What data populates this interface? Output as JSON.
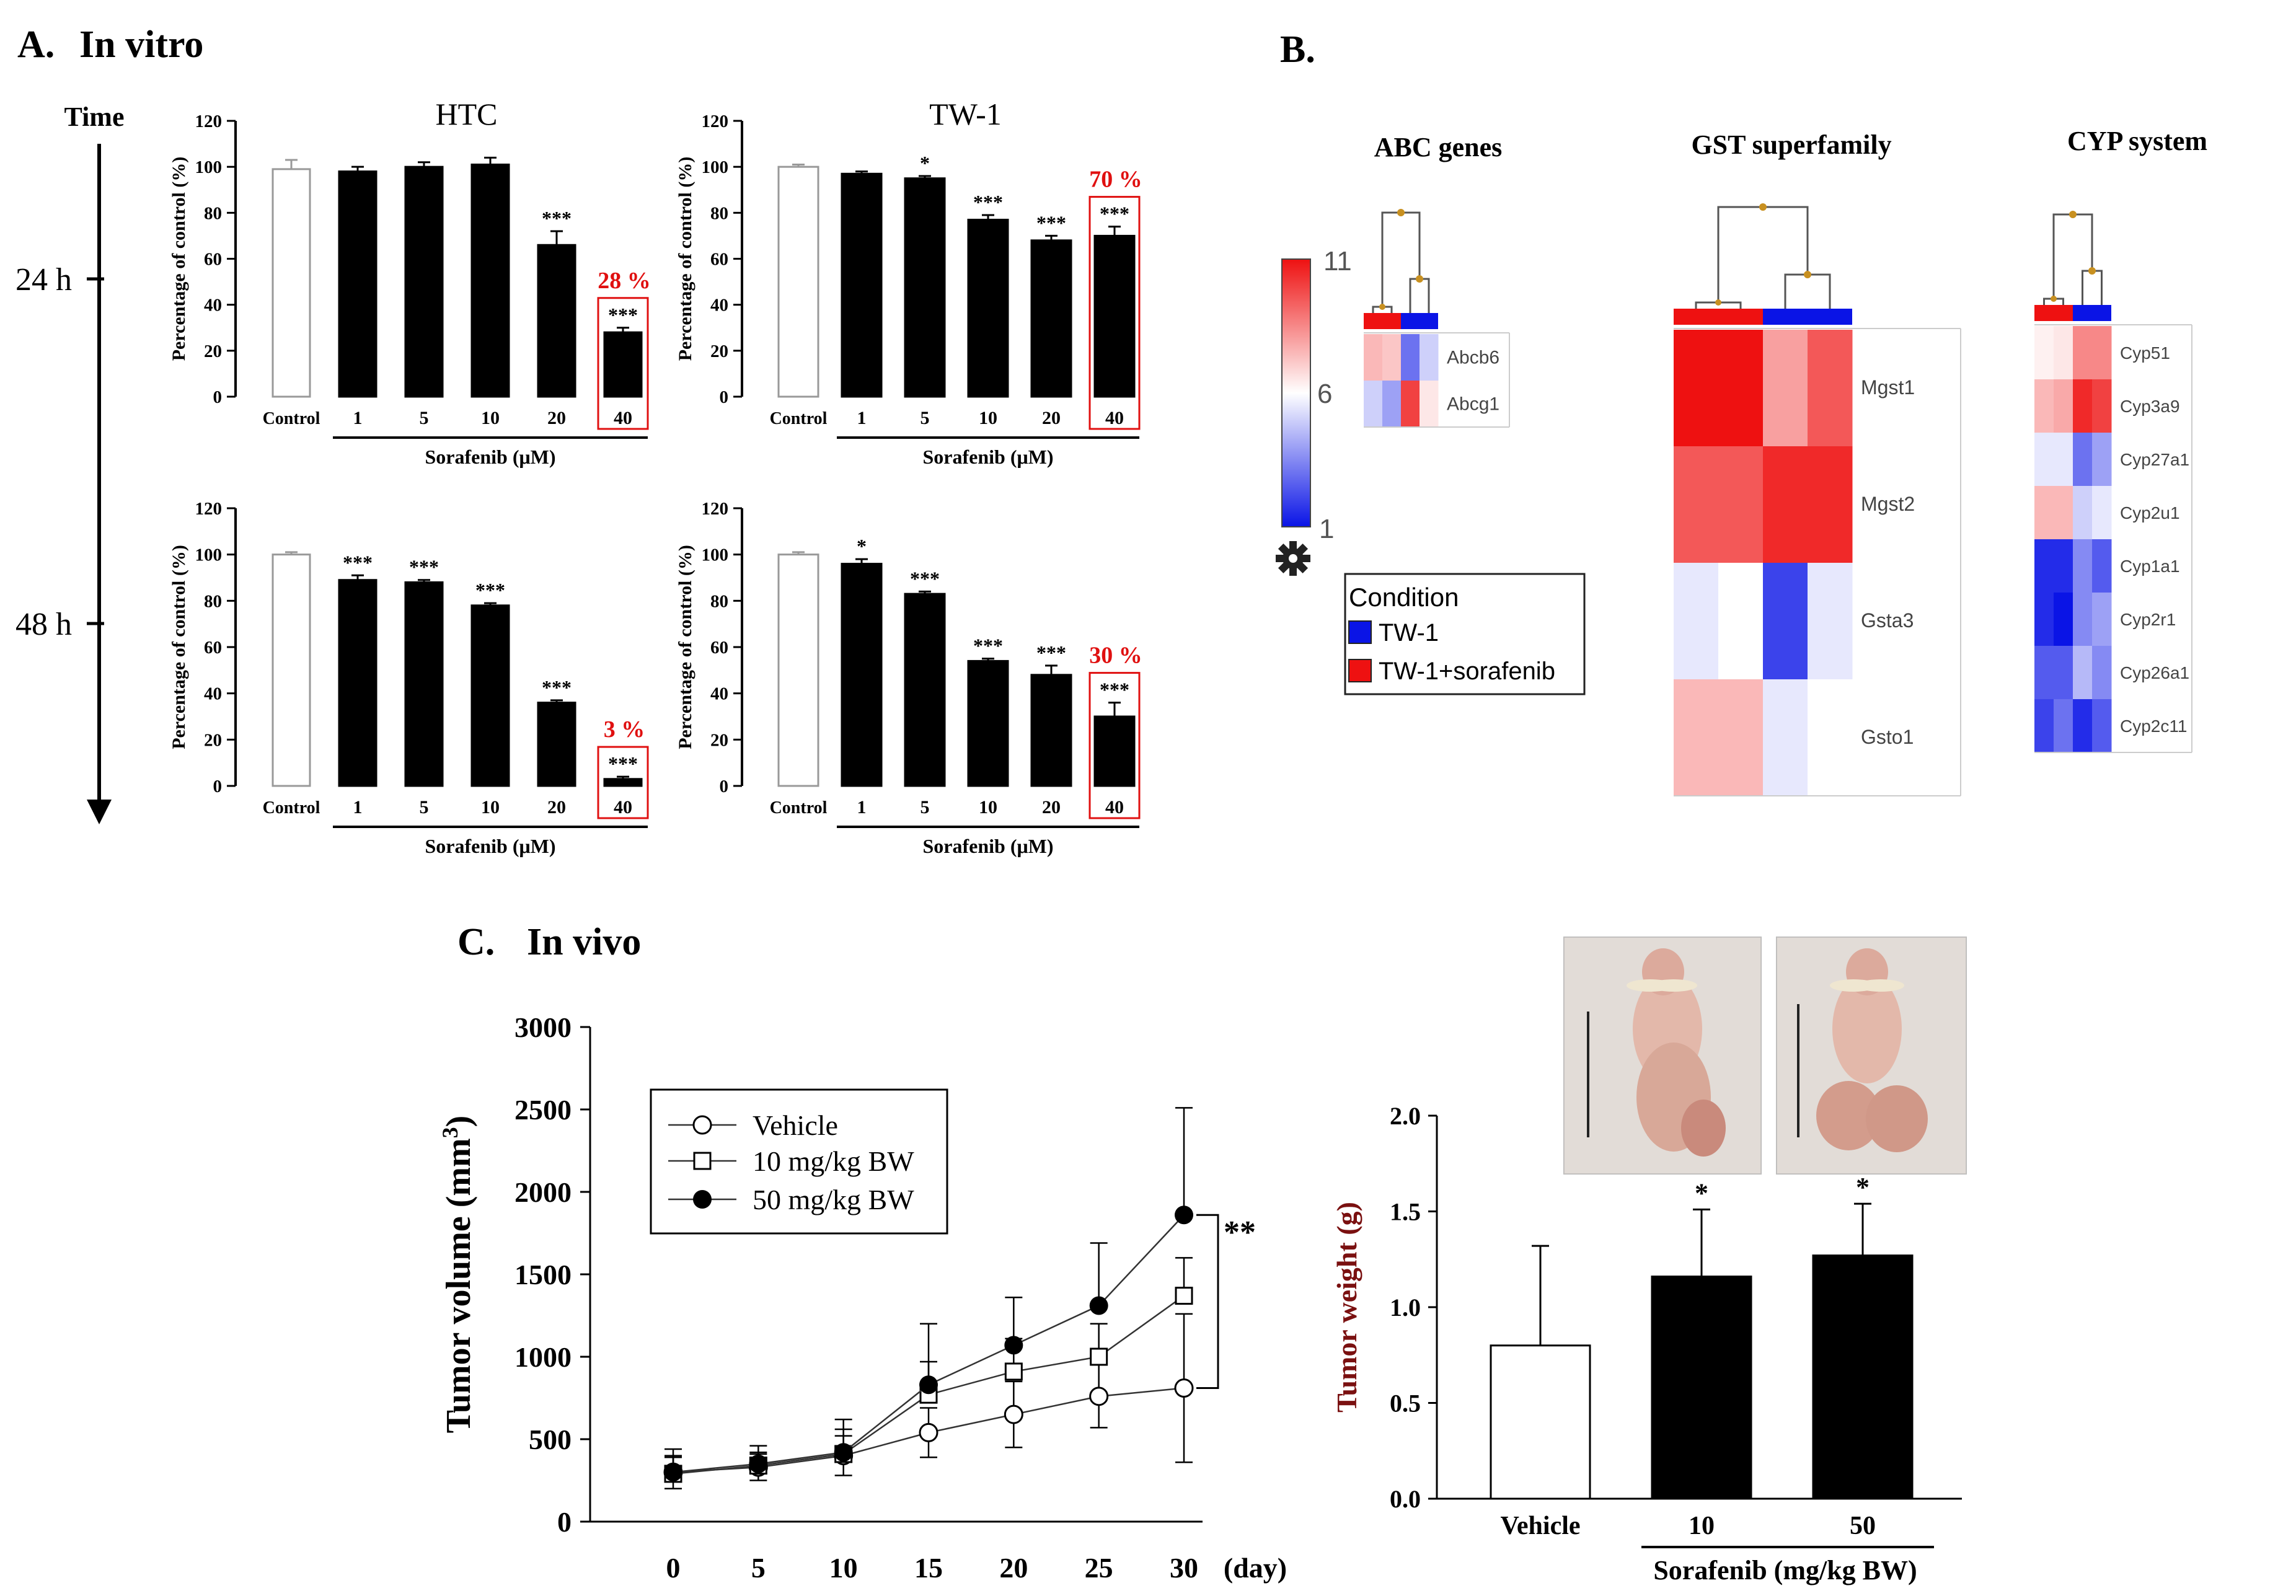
{
  "panel_a": {
    "label": "A.",
    "title": "In vitro",
    "time_label": "Time",
    "time_rows": [
      "24 h",
      "48 h"
    ],
    "ylabel": "Percentage of control (%)",
    "xlabel": "Sorafenib (μM)",
    "yticks": [
      0,
      20,
      40,
      60,
      80,
      100,
      120
    ],
    "categories": [
      "Control",
      "1",
      "5",
      "10",
      "20",
      "40"
    ]
  },
  "panel_b": {
    "label": "B.",
    "colorscale_ticks": [
      "11",
      "6",
      "1"
    ],
    "legend_title": "Condition",
    "legend_items": [
      {
        "label": "TW-1",
        "color": "#0a14e6"
      },
      {
        "label": "TW-1+sorafenib",
        "color": "#ee1111"
      }
    ]
  },
  "panel_c": {
    "label": "C.",
    "title": "In vivo",
    "significance": "**",
    "line_xunit": "(day)",
    "line_ylabel_main": "Tumor volume (mm",
    "line_ylabel_sup": "3",
    "line_ylabel_close": ")",
    "bar_ylabel": "Tumor weight (g)",
    "bar_group_label": "Sorafenib (mg/kg BW)",
    "bar_sig": [
      "",
      "*",
      "*"
    ]
  },
  "chart_data": [
    {
      "id": "htc_24h",
      "type": "bar",
      "title": "HTC",
      "categories": [
        "Control",
        "1",
        "5",
        "10",
        "20",
        "40"
      ],
      "values": [
        99,
        98,
        100,
        101,
        66,
        28
      ],
      "errors": [
        4,
        2,
        2,
        3,
        6,
        2
      ],
      "significance": [
        "",
        "",
        "",
        "",
        "***",
        "***"
      ],
      "highlight": "28 %",
      "ylim": [
        0,
        120
      ],
      "ylabel": "Percentage of control (%)",
      "xlabel": "Sorafenib (μM)"
    },
    {
      "id": "tw1_24h",
      "type": "bar",
      "title": "TW-1",
      "categories": [
        "Control",
        "1",
        "5",
        "10",
        "20",
        "40"
      ],
      "values": [
        100,
        97,
        95,
        77,
        68,
        70
      ],
      "errors": [
        1,
        1,
        1,
        2,
        2,
        4
      ],
      "significance": [
        "",
        "",
        "*",
        "***",
        "***",
        "***"
      ],
      "highlight": "70 %",
      "ylim": [
        0,
        120
      ],
      "ylabel": "Percentage of control (%)",
      "xlabel": "Sorafenib (μM)"
    },
    {
      "id": "htc_48h",
      "type": "bar",
      "title": "",
      "categories": [
        "Control",
        "1",
        "5",
        "10",
        "20",
        "40"
      ],
      "values": [
        100,
        89,
        88,
        78,
        36,
        3
      ],
      "errors": [
        1,
        2,
        1,
        1,
        1,
        1
      ],
      "significance": [
        "",
        "***",
        "***",
        "***",
        "***",
        "***"
      ],
      "highlight": "3 %",
      "ylim": [
        0,
        120
      ],
      "ylabel": "Percentage of control (%)",
      "xlabel": "Sorafenib (μM)"
    },
    {
      "id": "tw1_48h",
      "type": "bar",
      "title": "",
      "categories": [
        "Control",
        "1",
        "5",
        "10",
        "20",
        "40"
      ],
      "values": [
        100,
        96,
        83,
        54,
        48,
        30
      ],
      "errors": [
        1,
        2,
        1,
        1,
        4,
        6
      ],
      "significance": [
        "",
        "*",
        "***",
        "***",
        "***",
        "***"
      ],
      "highlight": "30 %",
      "ylim": [
        0,
        120
      ],
      "ylabel": "Percentage of control (%)",
      "xlabel": "Sorafenib (μM)"
    },
    {
      "id": "abc_genes",
      "type": "heatmap",
      "title": "ABC genes",
      "rows": [
        "Abcb6",
        "Abcg1"
      ],
      "values": [
        [
          7.5,
          7.2,
          3.0,
          5.0
        ],
        [
          5.0,
          4.0,
          10.0,
          6.5
        ]
      ],
      "column_groups": [
        "TW-1+sorafenib",
        "TW-1+sorafenib",
        "TW-1",
        "TW-1"
      ],
      "scale": [
        1,
        11
      ]
    },
    {
      "id": "gst_superfamily",
      "type": "heatmap",
      "title": "GST superfamily",
      "rows": [
        "Mgst1",
        "Mgst2",
        "Gsta3",
        "Gsto1"
      ],
      "values": [
        [
          11,
          11,
          8,
          9.5
        ],
        [
          9.5,
          9.5,
          10.5,
          10.5
        ],
        [
          5.5,
          6,
          2,
          5.5
        ],
        [
          7.5,
          7.5,
          5.5,
          6
        ]
      ],
      "column_groups": [
        "TW-1+sorafenib",
        "TW-1+sorafenib",
        "TW-1",
        "TW-1"
      ],
      "scale": [
        1,
        11
      ]
    },
    {
      "id": "cyp_system",
      "type": "heatmap",
      "title": "CYP system",
      "rows": [
        "Cyp51",
        "Cyp3a9",
        "Cyp27a1",
        "Cyp2u1",
        "Cyp1a1",
        "Cyp2r1",
        "Cyp26a1",
        "Cyp2c11"
      ],
      "values": [
        [
          6.3,
          6.5,
          8.5,
          8.5
        ],
        [
          7.5,
          7.8,
          10.5,
          10.0
        ],
        [
          5.5,
          5.5,
          3.0,
          4.0
        ],
        [
          7.5,
          7.5,
          5.0,
          5.5
        ],
        [
          1.5,
          1.5,
          3.5,
          2.5
        ],
        [
          1.5,
          1.0,
          3.5,
          4.0
        ],
        [
          2.5,
          2.5,
          4.5,
          3.5
        ],
        [
          2.0,
          3.0,
          1.5,
          2.5
        ]
      ],
      "column_groups": [
        "TW-1+sorafenib",
        "TW-1+sorafenib",
        "TW-1",
        "TW-1"
      ],
      "scale": [
        1,
        11
      ]
    },
    {
      "id": "tumor_volume",
      "type": "line",
      "x": [
        0,
        5,
        10,
        15,
        20,
        25,
        30
      ],
      "xlim": [
        0,
        30
      ],
      "ylim": [
        0,
        3000
      ],
      "yticks": [
        0,
        500,
        1000,
        1500,
        2000,
        2500,
        3000
      ],
      "series": [
        {
          "name": "Vehicle",
          "marker": "open-circle",
          "values": [
            300,
            330,
            400,
            540,
            650,
            760,
            810
          ],
          "errors": [
            100,
            80,
            120,
            150,
            200,
            190,
            450
          ]
        },
        {
          "name": "10 mg/kg BW",
          "marker": "open-square",
          "values": [
            290,
            340,
            410,
            770,
            910,
            1000,
            1370
          ],
          "errors": [
            100,
            80,
            150,
            200,
            200,
            200,
            230
          ]
        },
        {
          "name": "50 mg/kg BW",
          "marker": "filled-circle",
          "values": [
            300,
            350,
            420,
            830,
            1070,
            1310,
            1860
          ],
          "errors": [
            140,
            110,
            200,
            370,
            290,
            380,
            650
          ]
        }
      ]
    },
    {
      "id": "tumor_weight",
      "type": "bar",
      "categories": [
        "Vehicle",
        "10",
        "50"
      ],
      "values": [
        0.8,
        1.16,
        1.27
      ],
      "errors": [
        0.52,
        0.35,
        0.27
      ],
      "ylim": [
        0,
        2.0
      ],
      "yticks": [
        "0.0",
        "0.5",
        "1.0",
        "1.5",
        "2.0"
      ],
      "ylabel": "Tumor weight (g)",
      "xlabel": "Sorafenib (mg/kg BW)"
    }
  ]
}
